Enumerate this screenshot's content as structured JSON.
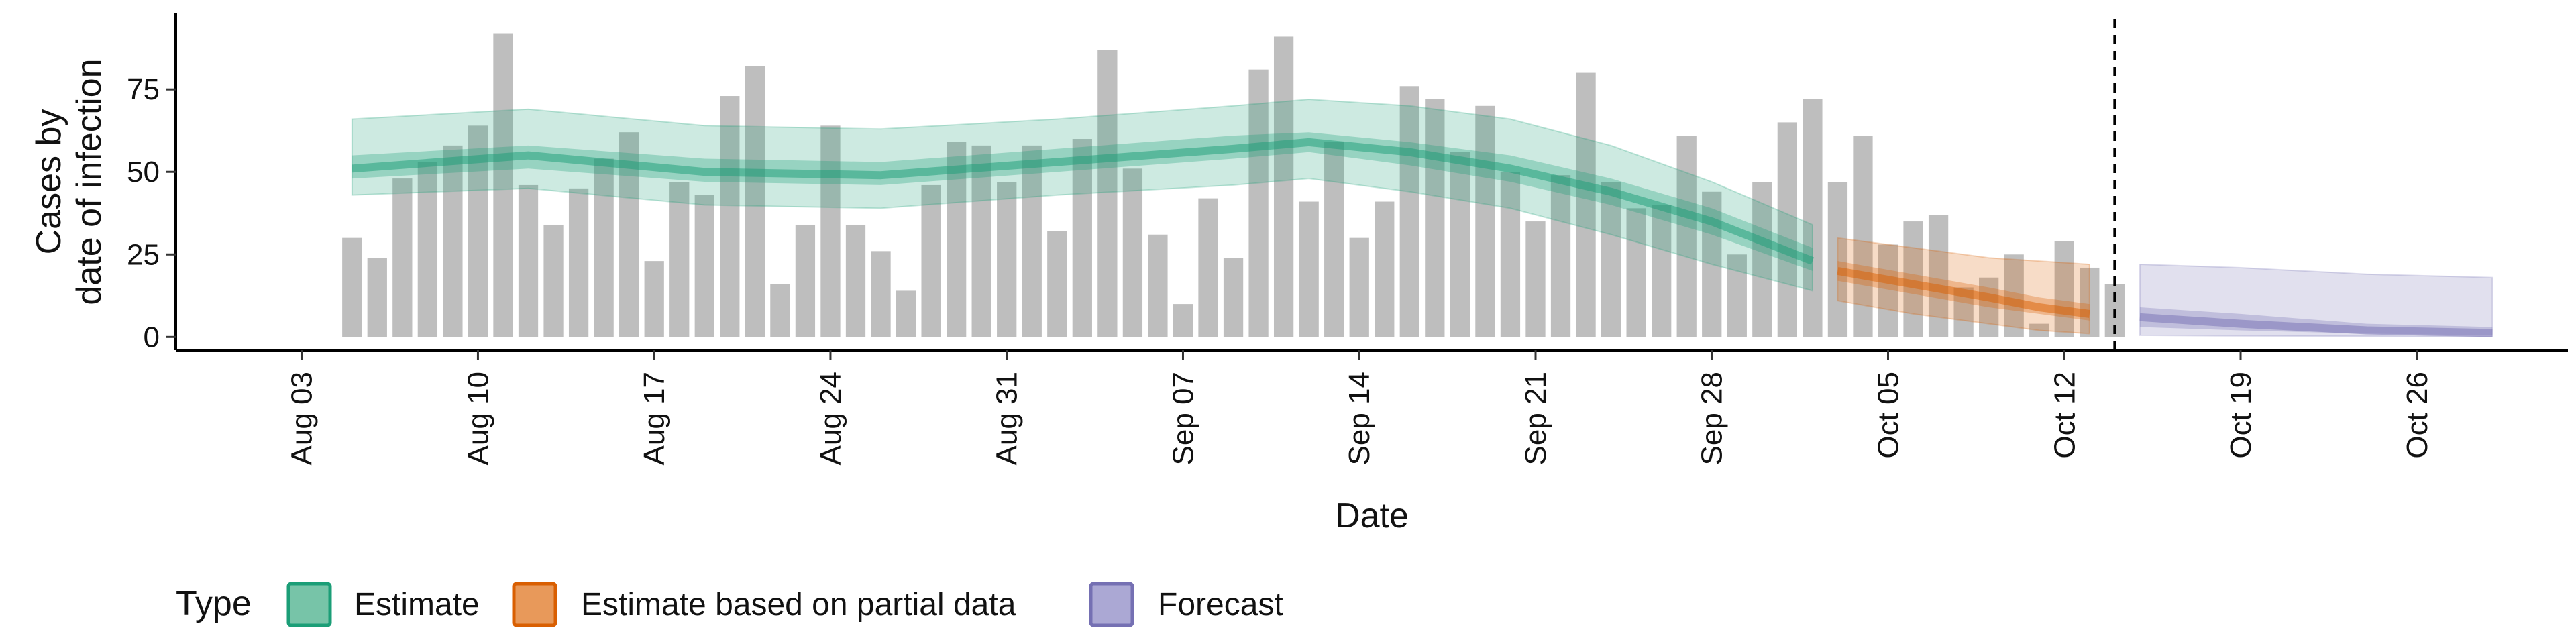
{
  "chart_data": {
    "type": "bar",
    "xlabel": "Date",
    "ylabel_lines": [
      "Cases by",
      "date of infection"
    ],
    "ylim": [
      -4,
      98
    ],
    "y_ticks": [
      0,
      25,
      50,
      75
    ],
    "x_start_date": "2020-08-01",
    "x_ticks": [
      {
        "date": "2020-08-03",
        "label": "Aug 03"
      },
      {
        "date": "2020-08-10",
        "label": "Aug 10"
      },
      {
        "date": "2020-08-17",
        "label": "Aug 17"
      },
      {
        "date": "2020-08-24",
        "label": "Aug 24"
      },
      {
        "date": "2020-08-31",
        "label": "Aug 31"
      },
      {
        "date": "2020-09-07",
        "label": "Sep 07"
      },
      {
        "date": "2020-09-14",
        "label": "Sep 14"
      },
      {
        "date": "2020-09-21",
        "label": "Sep 21"
      },
      {
        "date": "2020-09-28",
        "label": "Sep 28"
      },
      {
        "date": "2020-10-05",
        "label": "Oct 05"
      },
      {
        "date": "2020-10-12",
        "label": "Oct 12"
      },
      {
        "date": "2020-10-19",
        "label": "Oct 19"
      },
      {
        "date": "2020-10-26",
        "label": "Oct 26"
      }
    ],
    "xlim": [
      "2020-07-29",
      "2020-11-01"
    ],
    "vline_date": "2020-10-14",
    "bars_first_date": "2020-08-05",
    "bar_values": [
      30,
      24,
      48,
      53,
      58,
      64,
      92,
      46,
      34,
      45,
      54,
      62,
      23,
      47,
      43,
      73,
      82,
      16,
      34,
      64,
      34,
      26,
      14,
      46,
      59,
      58,
      47,
      58,
      32,
      60,
      87,
      51,
      31,
      10,
      42,
      24,
      81,
      91,
      41,
      59,
      30,
      41,
      76,
      72,
      56,
      70,
      50,
      35,
      49,
      80,
      47,
      39,
      40,
      61,
      44,
      25,
      47,
      65,
      72,
      47,
      61,
      28,
      35,
      37,
      15,
      18,
      25,
      4,
      29,
      21,
      16
    ],
    "bands": [
      {
        "name": "Estimate",
        "color": "#1b9e77",
        "x": [
          "2020-08-05",
          "2020-08-12",
          "2020-08-19",
          "2020-08-26",
          "2020-09-02",
          "2020-09-09",
          "2020-09-12",
          "2020-09-16",
          "2020-09-20",
          "2020-09-24",
          "2020-09-28",
          "2020-10-02"
        ],
        "median": [
          51,
          55,
          50,
          49,
          53,
          57,
          59,
          56,
          51,
          44,
          35,
          23
        ],
        "inner_lo": [
          48,
          51,
          47,
          46,
          50,
          54,
          56,
          52,
          47,
          40,
          31,
          20
        ],
        "inner_hi": [
          55,
          58,
          54,
          53,
          57,
          61,
          62,
          59,
          55,
          48,
          39,
          27
        ],
        "outer_lo": [
          43,
          45,
          40,
          39,
          43,
          46,
          48,
          44,
          39,
          31,
          22,
          14
        ],
        "outer_hi": [
          66,
          69,
          64,
          63,
          66,
          70,
          72,
          70,
          66,
          58,
          47,
          34
        ]
      },
      {
        "name": "Estimate based on partial data",
        "color": "#d95f02",
        "x": [
          "2020-10-03",
          "2020-10-06",
          "2020-10-09",
          "2020-10-11",
          "2020-10-13"
        ],
        "median": [
          20,
          16,
          12,
          9,
          7
        ],
        "inner_lo": [
          17,
          13,
          9,
          7,
          5
        ],
        "inner_hi": [
          23,
          19,
          15,
          12,
          10
        ],
        "outer_lo": [
          11,
          7,
          4,
          2,
          1
        ],
        "outer_hi": [
          30,
          27,
          24,
          23,
          22
        ]
      },
      {
        "name": "Forecast",
        "color": "#7570b3",
        "x": [
          "2020-10-15",
          "2020-10-19",
          "2020-10-24",
          "2020-10-29"
        ],
        "median": [
          6,
          4,
          2,
          1.2
        ],
        "inner_lo": [
          3,
          2,
          1,
          0.5
        ],
        "inner_hi": [
          9,
          7,
          4,
          3
        ],
        "outer_lo": [
          0.5,
          0.3,
          0.2,
          0.1
        ],
        "outer_hi": [
          22,
          21,
          19,
          18
        ]
      }
    ],
    "legend": {
      "title": "Type",
      "position": "bottom",
      "items": [
        {
          "label": "Estimate",
          "fill": "#77c4a8",
          "stroke": "#1b9e77"
        },
        {
          "label": "Estimate based on partial data",
          "fill": "#e8995a",
          "stroke": "#d95f02"
        },
        {
          "label": "Forecast",
          "fill": "#aba8d4",
          "stroke": "#7570b3"
        }
      ]
    },
    "bar_color": "#bebebe"
  }
}
